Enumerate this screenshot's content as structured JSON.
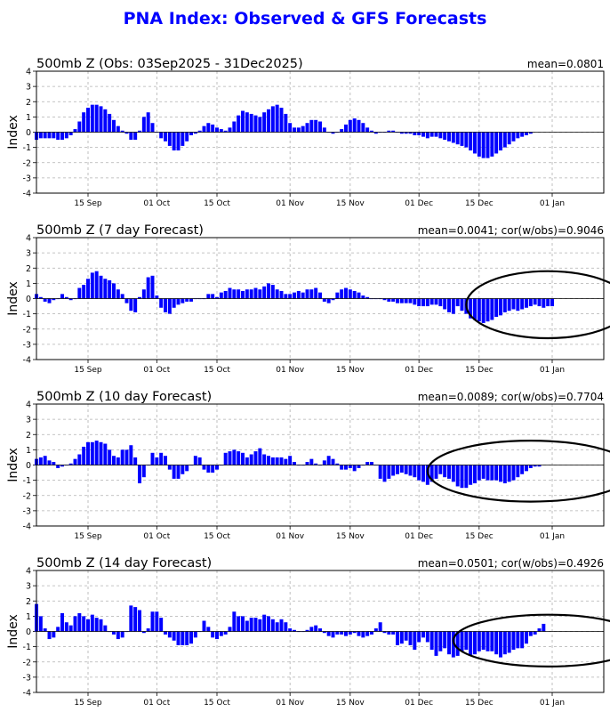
{
  "title": "PNA Index: Observed & GFS Forecasts",
  "colors": {
    "bar": "#0000ff",
    "title": "#0000ff",
    "grid": "#b0b0b0",
    "ellipse": "#000000"
  },
  "chart_data": [
    {
      "type": "bar",
      "title": "500mb Z (Obs: 03Sep2025 - 31Dec2025)",
      "stat": "mean=0.0801",
      "ylabel": "Index",
      "ylim": [
        -4,
        4
      ],
      "yticks": [
        -4,
        -3,
        -2,
        -1,
        0,
        1,
        2,
        3,
        4
      ],
      "x_range": [
        "2025-09-03",
        "2026-01-13"
      ],
      "xticks": [
        {
          "date": "2025-09-15",
          "label": "15 Sep"
        },
        {
          "date": "2025-10-01",
          "label": "01 Oct"
        },
        {
          "date": "2025-10-15",
          "label": "15 Oct"
        },
        {
          "date": "2025-11-01",
          "label": "01 Nov"
        },
        {
          "date": "2025-11-15",
          "label": "15 Nov"
        },
        {
          "date": "2025-12-01",
          "label": "01 Dec"
        },
        {
          "date": "2025-12-15",
          "label": "15 Dec"
        },
        {
          "date": "2026-01-01",
          "label": "01 Jan"
        }
      ],
      "grid": true,
      "start_date": "2025-09-03",
      "values": [
        -0.5,
        -0.4,
        -0.4,
        -0.4,
        -0.4,
        -0.5,
        -0.5,
        -0.4,
        -0.2,
        0.2,
        0.7,
        1.3,
        1.6,
        1.8,
        1.8,
        1.7,
        1.5,
        1.2,
        0.8,
        0.4,
        0.1,
        -0.1,
        -0.5,
        -0.5,
        0.1,
        1.0,
        1.3,
        0.6,
        0.0,
        -0.4,
        -0.6,
        -0.9,
        -1.2,
        -1.2,
        -0.9,
        -0.6,
        -0.2,
        -0.1,
        0.1,
        0.4,
        0.6,
        0.5,
        0.3,
        0.2,
        0.1,
        0.3,
        0.7,
        1.1,
        1.4,
        1.3,
        1.2,
        1.1,
        1.0,
        1.3,
        1.5,
        1.7,
        1.8,
        1.6,
        1.2,
        0.6,
        0.3,
        0.3,
        0.4,
        0.6,
        0.8,
        0.8,
        0.7,
        0.3,
        0.0,
        -0.1,
        0.0,
        0.2,
        0.5,
        0.8,
        0.9,
        0.8,
        0.6,
        0.3,
        0.1,
        -0.1,
        0.0,
        0.0,
        0.1,
        0.1,
        0.0,
        -0.1,
        -0.1,
        -0.1,
        -0.2,
        -0.2,
        -0.3,
        -0.4,
        -0.3,
        -0.3,
        -0.4,
        -0.5,
        -0.6,
        -0.7,
        -0.8,
        -0.9,
        -1.0,
        -1.2,
        -1.4,
        -1.6,
        -1.7,
        -1.7,
        -1.6,
        -1.4,
        -1.2,
        -1.0,
        -0.8,
        -0.6,
        -0.4,
        -0.3,
        -0.2,
        -0.1
      ],
      "highlight": null
    },
    {
      "type": "bar",
      "title": "500mb Z (7 day Forecast)",
      "stat": "mean=0.0041; cor(w/obs)=0.9046",
      "ylabel": "Index",
      "ylim": [
        -4,
        4
      ],
      "yticks": [
        -4,
        -3,
        -2,
        -1,
        0,
        1,
        2,
        3,
        4
      ],
      "x_range": [
        "2025-09-03",
        "2026-01-13"
      ],
      "xticks": [
        {
          "date": "2025-09-15",
          "label": "15 Sep"
        },
        {
          "date": "2025-10-01",
          "label": "01 Oct"
        },
        {
          "date": "2025-10-15",
          "label": "15 Oct"
        },
        {
          "date": "2025-11-01",
          "label": "01 Nov"
        },
        {
          "date": "2025-11-15",
          "label": "15 Nov"
        },
        {
          "date": "2025-12-01",
          "label": "01 Dec"
        },
        {
          "date": "2025-12-15",
          "label": "15 Dec"
        },
        {
          "date": "2026-01-01",
          "label": "01 Jan"
        }
      ],
      "grid": true,
      "start_date": "2025-09-03",
      "values": [
        0.3,
        0.1,
        -0.2,
        -0.3,
        -0.1,
        0.0,
        0.3,
        0.1,
        -0.1,
        0.0,
        0.7,
        0.9,
        1.3,
        1.7,
        1.8,
        1.5,
        1.3,
        1.2,
        1.0,
        0.6,
        0.3,
        -0.3,
        -0.8,
        -0.9,
        0.1,
        0.6,
        1.4,
        1.5,
        0.2,
        -0.6,
        -0.9,
        -1.0,
        -0.6,
        -0.4,
        -0.3,
        -0.2,
        -0.2,
        0.0,
        0.0,
        0.0,
        0.3,
        0.3,
        0.1,
        0.4,
        0.5,
        0.7,
        0.6,
        0.6,
        0.5,
        0.6,
        0.6,
        0.7,
        0.6,
        0.8,
        1.0,
        0.9,
        0.6,
        0.5,
        0.3,
        0.3,
        0.4,
        0.5,
        0.4,
        0.6,
        0.6,
        0.7,
        0.4,
        -0.2,
        -0.3,
        -0.1,
        0.4,
        0.6,
        0.7,
        0.6,
        0.5,
        0.4,
        0.2,
        0.1,
        0.0,
        0.0,
        0.0,
        -0.1,
        -0.2,
        -0.2,
        -0.3,
        -0.3,
        -0.3,
        -0.3,
        -0.4,
        -0.5,
        -0.5,
        -0.5,
        -0.4,
        -0.4,
        -0.5,
        -0.7,
        -0.9,
        -1.0,
        -0.5,
        -0.8,
        -1.0,
        -1.3,
        -1.4,
        -1.5,
        -1.6,
        -1.5,
        -1.4,
        -1.2,
        -1.1,
        -0.9,
        -0.8,
        -0.7,
        -0.8,
        -0.7,
        -0.6,
        -0.5,
        -0.4,
        -0.5,
        -0.6,
        -0.5,
        -0.5
      ],
      "highlight": {
        "center": "2025-12-31",
        "half_width_days": 19,
        "y_center": -0.4,
        "y_half": 2.2
      }
    },
    {
      "type": "bar",
      "title": "500mb Z (10 day Forecast)",
      "stat": "mean=0.0089; cor(w/obs)=0.7704",
      "ylabel": "Index",
      "ylim": [
        -4,
        4
      ],
      "yticks": [
        -4,
        -3,
        -2,
        -1,
        0,
        1,
        2,
        3,
        4
      ],
      "x_range": [
        "2025-09-03",
        "2026-01-13"
      ],
      "xticks": [
        {
          "date": "2025-09-15",
          "label": "15 Sep"
        },
        {
          "date": "2025-10-01",
          "label": "01 Oct"
        },
        {
          "date": "2025-10-15",
          "label": "15 Oct"
        },
        {
          "date": "2025-11-01",
          "label": "01 Nov"
        },
        {
          "date": "2025-11-15",
          "label": "15 Nov"
        },
        {
          "date": "2025-12-01",
          "label": "01 Dec"
        },
        {
          "date": "2025-12-15",
          "label": "15 Dec"
        },
        {
          "date": "2026-01-01",
          "label": "01 Jan"
        }
      ],
      "grid": true,
      "start_date": "2025-09-03",
      "values": [
        0.4,
        0.5,
        0.6,
        0.3,
        0.2,
        -0.2,
        -0.1,
        0.0,
        0.1,
        0.4,
        0.7,
        1.2,
        1.5,
        1.5,
        1.6,
        1.5,
        1.4,
        1.0,
        0.6,
        0.5,
        1.0,
        1.0,
        1.3,
        0.5,
        -1.2,
        -0.8,
        0.0,
        0.8,
        0.5,
        0.8,
        0.6,
        -0.3,
        -0.9,
        -0.9,
        -0.6,
        -0.4,
        0.0,
        0.6,
        0.5,
        -0.3,
        -0.5,
        -0.5,
        -0.3,
        0.0,
        0.8,
        0.9,
        1.0,
        0.9,
        0.8,
        0.5,
        0.7,
        0.9,
        1.1,
        0.7,
        0.6,
        0.5,
        0.5,
        0.5,
        0.4,
        0.6,
        0.2,
        0.0,
        0.0,
        0.2,
        0.4,
        0.1,
        0.0,
        0.3,
        0.6,
        0.4,
        0.1,
        -0.3,
        -0.3,
        -0.2,
        -0.4,
        -0.2,
        0.0,
        0.2,
        0.2,
        0.0,
        -0.9,
        -1.1,
        -0.9,
        -0.7,
        -0.6,
        -0.5,
        -0.6,
        -0.7,
        -0.8,
        -1.0,
        -1.1,
        -1.3,
        -1.1,
        -0.9,
        -0.6,
        -0.8,
        -0.9,
        -1.1,
        -1.4,
        -1.5,
        -1.5,
        -1.3,
        -1.2,
        -1.0,
        -0.9,
        -1.0,
        -1.0,
        -1.0,
        -1.1,
        -1.2,
        -1.1,
        -1.0,
        -0.8,
        -0.6,
        -0.4,
        -0.2,
        -0.1,
        -0.1
      ],
      "highlight": {
        "center": "2025-12-27",
        "half_width_days": 24,
        "y_center": -0.4,
        "y_half": 2.0
      }
    },
    {
      "type": "bar",
      "title": "500mb Z (14 day Forecast)",
      "stat": "mean=0.0501; cor(w/obs)=0.4926",
      "ylabel": "Index",
      "ylim": [
        -4,
        4
      ],
      "yticks": [
        -4,
        -3,
        -2,
        -1,
        0,
        1,
        2,
        3,
        4
      ],
      "x_range": [
        "2025-09-03",
        "2026-01-13"
      ],
      "xticks": [
        {
          "date": "2025-09-15",
          "label": "15 Sep"
        },
        {
          "date": "2025-10-01",
          "label": "01 Oct"
        },
        {
          "date": "2025-10-15",
          "label": "15 Oct"
        },
        {
          "date": "2025-11-01",
          "label": "01 Nov"
        },
        {
          "date": "2025-11-15",
          "label": "15 Nov"
        },
        {
          "date": "2025-12-01",
          "label": "01 Dec"
        },
        {
          "date": "2025-12-15",
          "label": "15 Dec"
        },
        {
          "date": "2026-01-01",
          "label": "01 Jan"
        }
      ],
      "grid": true,
      "start_date": "2025-09-03",
      "values": [
        1.8,
        1.0,
        0.2,
        -0.5,
        -0.4,
        0.3,
        1.2,
        0.6,
        0.4,
        1.0,
        1.2,
        1.0,
        0.8,
        1.1,
        0.9,
        0.8,
        0.4,
        0.0,
        -0.2,
        -0.5,
        -0.4,
        0.0,
        1.7,
        1.6,
        1.4,
        -0.1,
        0.2,
        1.3,
        1.3,
        0.9,
        -0.2,
        -0.4,
        -0.6,
        -0.9,
        -0.9,
        -0.9,
        -0.8,
        -0.4,
        0.0,
        0.7,
        0.3,
        -0.4,
        -0.5,
        -0.3,
        -0.2,
        0.3,
        1.3,
        1.0,
        1.0,
        0.7,
        0.9,
        0.9,
        0.8,
        1.1,
        1.0,
        0.8,
        0.6,
        0.8,
        0.6,
        0.2,
        0.1,
        0.0,
        0.0,
        0.1,
        0.3,
        0.4,
        0.2,
        -0.1,
        -0.3,
        -0.4,
        -0.2,
        -0.2,
        -0.3,
        -0.2,
        -0.1,
        -0.3,
        -0.4,
        -0.3,
        -0.2,
        0.2,
        0.6,
        -0.1,
        -0.2,
        -0.2,
        -0.9,
        -0.8,
        -0.6,
        -0.9,
        -1.2,
        -0.7,
        -0.4,
        -0.7,
        -1.2,
        -1.6,
        -1.3,
        -1.1,
        -1.5,
        -1.7,
        -1.6,
        -1.3,
        -1.2,
        -1.6,
        -1.5,
        -1.3,
        -1.2,
        -1.3,
        -1.3,
        -1.5,
        -1.7,
        -1.5,
        -1.4,
        -1.2,
        -1.1,
        -1.1,
        -0.8,
        -0.3,
        -0.2,
        0.2,
        0.5
      ],
      "highlight": {
        "center": "2025-12-31",
        "half_width_days": 22,
        "y_center": -0.6,
        "y_half": 1.7
      }
    }
  ]
}
